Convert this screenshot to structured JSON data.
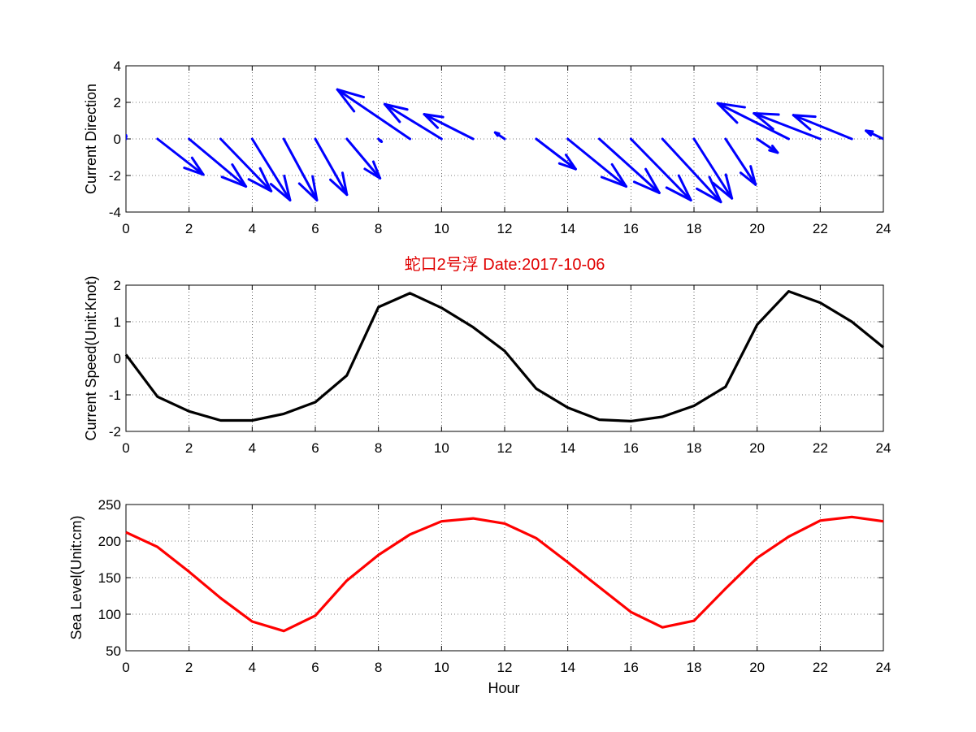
{
  "chart_data": [
    {
      "type": "quiver",
      "ylabel": "Current Direction",
      "xlim": [
        0,
        24
      ],
      "ylim": [
        -4,
        4
      ],
      "xticks": [
        0,
        2,
        4,
        6,
        8,
        10,
        12,
        14,
        16,
        18,
        20,
        22,
        24
      ],
      "yticks": [
        -4,
        -2,
        0,
        2,
        4
      ],
      "grid": true,
      "color": "#0000ff",
      "arrows": [
        {
          "x": 0,
          "u": 0.0,
          "v": 0.2
        },
        {
          "x": 1,
          "u": 1.45,
          "v": -1.95
        },
        {
          "x": 2,
          "u": 1.8,
          "v": -2.6
        },
        {
          "x": 3,
          "u": 1.6,
          "v": -2.85
        },
        {
          "x": 4,
          "u": 1.2,
          "v": -3.35
        },
        {
          "x": 5,
          "u": 1.05,
          "v": -3.35
        },
        {
          "x": 6,
          "u": 1.0,
          "v": -3.05
        },
        {
          "x": 7,
          "u": 1.05,
          "v": -2.15
        },
        {
          "x": 8,
          "u": 0.1,
          "v": -0.15
        },
        {
          "x": 9,
          "u": -2.3,
          "v": 2.7
        },
        {
          "x": 10,
          "u": -1.8,
          "v": 1.9
        },
        {
          "x": 11,
          "u": -1.55,
          "v": 1.35
        },
        {
          "x": 12,
          "u": -0.3,
          "v": 0.35
        },
        {
          "x": 13,
          "u": 1.25,
          "v": -1.65
        },
        {
          "x": 14,
          "u": 1.85,
          "v": -2.6
        },
        {
          "x": 15,
          "u": 1.9,
          "v": -2.95
        },
        {
          "x": 16,
          "u": 1.9,
          "v": -3.35
        },
        {
          "x": 17,
          "u": 1.85,
          "v": -3.45
        },
        {
          "x": 18,
          "u": 1.2,
          "v": -3.25
        },
        {
          "x": 19,
          "u": 0.95,
          "v": -2.5
        },
        {
          "x": 20,
          "u": 0.65,
          "v": -0.75
        },
        {
          "x": 21,
          "u": -2.25,
          "v": 1.95
        },
        {
          "x": 22,
          "u": -2.1,
          "v": 1.4
        },
        {
          "x": 23,
          "u": -1.85,
          "v": 1.3
        },
        {
          "x": 24,
          "u": -0.55,
          "v": 0.45
        }
      ]
    },
    {
      "type": "line",
      "title": "蛇口2号浮   Date:2017-10-06",
      "ylabel": "Current Speed(Unit:Knot)",
      "xlim": [
        0,
        24
      ],
      "ylim": [
        -2,
        2
      ],
      "xticks": [
        0,
        2,
        4,
        6,
        8,
        10,
        12,
        14,
        16,
        18,
        20,
        22,
        24
      ],
      "yticks": [
        -2,
        -1,
        0,
        1,
        2
      ],
      "grid": true,
      "color": "#000000",
      "x": [
        0,
        1,
        2,
        3,
        4,
        5,
        6,
        7,
        8,
        9,
        10,
        11,
        12,
        13,
        14,
        15,
        16,
        17,
        18,
        19,
        20,
        21,
        22,
        23,
        24
      ],
      "y": [
        0.1,
        -1.05,
        -1.45,
        -1.7,
        -1.7,
        -1.52,
        -1.2,
        -0.47,
        1.4,
        1.78,
        1.38,
        0.85,
        0.2,
        -0.83,
        -1.35,
        -1.68,
        -1.72,
        -1.6,
        -1.3,
        -0.78,
        0.92,
        1.83,
        1.52,
        1.0,
        0.3
      ]
    },
    {
      "type": "line",
      "xlabel": "Hour",
      "ylabel": "Sea Level(Unit:cm)",
      "xlim": [
        0,
        24
      ],
      "ylim": [
        50,
        250
      ],
      "xticks": [
        0,
        2,
        4,
        6,
        8,
        10,
        12,
        14,
        16,
        18,
        20,
        22,
        24
      ],
      "yticks": [
        50,
        100,
        150,
        200,
        250
      ],
      "grid": true,
      "color": "#ff0000",
      "x": [
        0,
        1,
        2,
        3,
        4,
        5,
        6,
        7,
        8,
        9,
        10,
        11,
        12,
        13,
        14,
        15,
        16,
        17,
        18,
        19,
        20,
        21,
        22,
        23,
        24
      ],
      "y": [
        212,
        192,
        158,
        122,
        90,
        77,
        98,
        146,
        181,
        209,
        227,
        231,
        224,
        204,
        171,
        137,
        103,
        82,
        91,
        135,
        177,
        206,
        228,
        233,
        227
      ]
    }
  ]
}
